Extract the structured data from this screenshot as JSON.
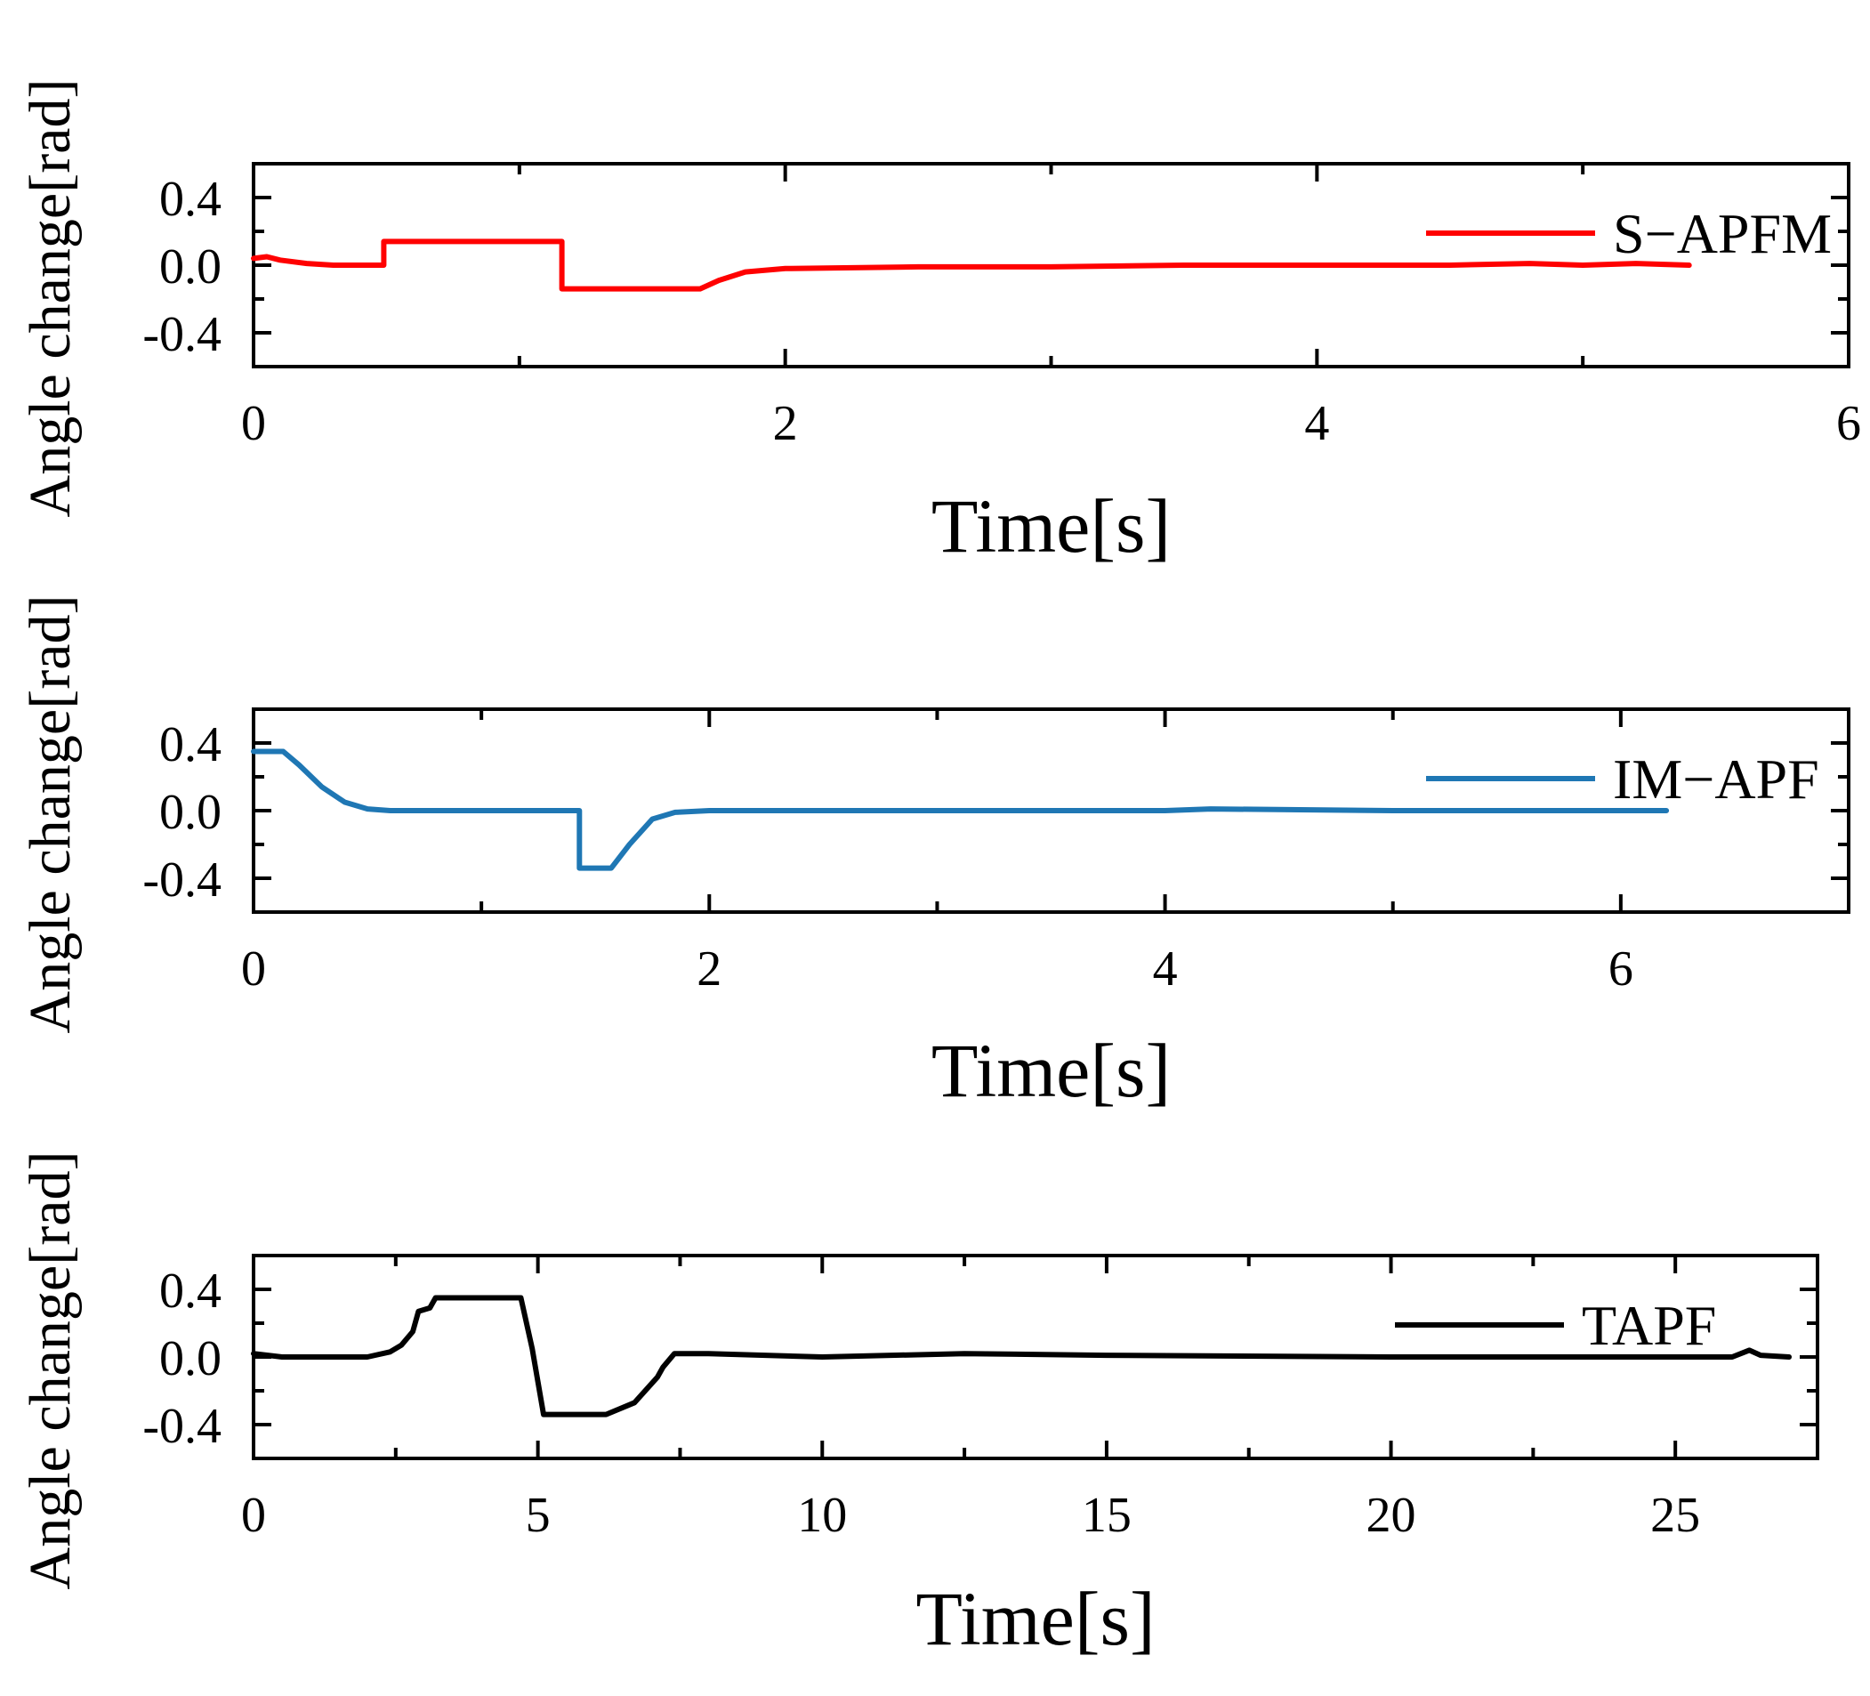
{
  "chart_data": [
    {
      "type": "line",
      "ylabel": "Angle change[rad]",
      "xlabel": "Time[s]",
      "xlim": [
        0,
        6
      ],
      "ylim": [
        -0.6,
        0.6
      ],
      "xticks": [
        0,
        2,
        4,
        6
      ],
      "xtick_labels": [
        "0",
        "2",
        "4",
        "6"
      ],
      "yticks": [
        0.4,
        0.0,
        -0.4
      ],
      "ytick_labels": [
        "0.4",
        "0.0",
        "-0.4"
      ],
      "legend_position": "top-right",
      "series": [
        {
          "name": "S−APFM",
          "color": "#ff0000",
          "x": [
            0,
            0.05,
            0.1,
            0.2,
            0.3,
            0.4,
            0.49,
            0.49,
            1.0,
            1.16,
            1.16,
            1.5,
            1.68,
            1.75,
            1.85,
            2.0,
            2.5,
            3.0,
            3.5,
            4.0,
            4.5,
            4.8,
            5.0,
            5.2,
            5.4
          ],
          "values": [
            0.04,
            0.05,
            0.03,
            0.01,
            0.0,
            0.0,
            0.0,
            0.14,
            0.14,
            0.14,
            -0.14,
            -0.14,
            -0.14,
            -0.09,
            -0.04,
            -0.02,
            -0.01,
            -0.01,
            0.0,
            0.0,
            0.0,
            0.01,
            0.0,
            0.01,
            0.0
          ]
        }
      ]
    },
    {
      "type": "line",
      "ylabel": "Angle change[rad]",
      "xlabel": "Time[s]",
      "xlim": [
        0,
        7
      ],
      "ylim": [
        -0.6,
        0.6
      ],
      "xticks": [
        0,
        2,
        4,
        6
      ],
      "xtick_labels": [
        "0",
        "2",
        "4",
        "6"
      ],
      "yticks": [
        0.4,
        0.0,
        -0.4
      ],
      "ytick_labels": [
        "0.4",
        "0.0",
        "-0.4"
      ],
      "legend_position": "top-right",
      "series": [
        {
          "name": "IM−APF",
          "color": "#1f77b4",
          "x": [
            0,
            0.13,
            0.2,
            0.3,
            0.4,
            0.5,
            0.6,
            0.8,
            1.0,
            1.43,
            1.43,
            1.57,
            1.65,
            1.75,
            1.85,
            2.0,
            3.0,
            4.0,
            4.2,
            5.0,
            6.0,
            6.2
          ],
          "values": [
            0.35,
            0.35,
            0.27,
            0.14,
            0.05,
            0.01,
            0.0,
            0.0,
            0.0,
            0.0,
            -0.34,
            -0.34,
            -0.2,
            -0.05,
            -0.01,
            0.0,
            0.0,
            0.0,
            0.01,
            0.0,
            0.0,
            0.0
          ]
        }
      ]
    },
    {
      "type": "line",
      "ylabel": "Angle change[rad]",
      "xlabel": "Time[s]",
      "xlim": [
        0,
        27.5
      ],
      "ylim": [
        -0.6,
        0.6
      ],
      "xticks": [
        0,
        5,
        10,
        15,
        20,
        25
      ],
      "xtick_labels": [
        "0",
        "5",
        "10",
        "15",
        "20",
        "25"
      ],
      "yticks": [
        0.4,
        0.0,
        -0.4
      ],
      "ytick_labels": [
        "0.4",
        "0.0",
        "-0.4"
      ],
      "legend_position": "top-right",
      "series": [
        {
          "name": "TAPF",
          "color": "#000000",
          "x": [
            0,
            0.5,
            1.5,
            2.0,
            2.4,
            2.6,
            2.8,
            2.9,
            3.1,
            3.2,
            4.7,
            4.9,
            5.1,
            6.2,
            6.7,
            7.1,
            7.2,
            7.4,
            8.0,
            10.0,
            12.5,
            15.0,
            20.0,
            26.0,
            26.3,
            26.5,
            27.0
          ],
          "values": [
            0.02,
            0.0,
            0.0,
            0.0,
            0.03,
            0.07,
            0.15,
            0.27,
            0.29,
            0.35,
            0.35,
            0.05,
            -0.34,
            -0.34,
            -0.27,
            -0.12,
            -0.06,
            0.02,
            0.02,
            0.0,
            0.02,
            0.01,
            0.0,
            0.0,
            0.04,
            0.01,
            0.0
          ]
        }
      ]
    }
  ]
}
